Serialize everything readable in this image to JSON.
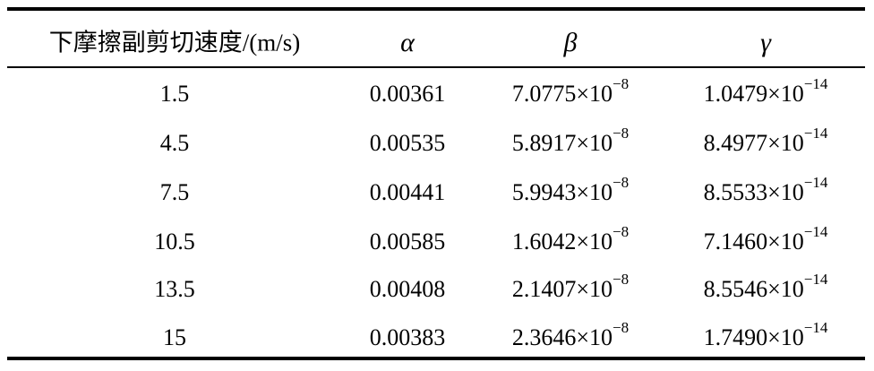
{
  "table": {
    "header": [
      "下摩擦副剪切速度/(m/s)",
      "α",
      "β",
      "γ"
    ],
    "rows": [
      [
        "1.5",
        "0.00361",
        {
          "base": "7.0775×10",
          "exp": "−8"
        },
        {
          "base": "1.0479×10",
          "exp": "−14"
        }
      ],
      [
        "4.5",
        "0.00535",
        {
          "base": "5.8917×10",
          "exp": "−8"
        },
        {
          "base": "8.4977×10",
          "exp": "−14"
        }
      ],
      [
        "7.5",
        "0.00441",
        {
          "base": "5.9943×10",
          "exp": "−8"
        },
        {
          "base": "8.5533×10",
          "exp": "−14"
        }
      ],
      [
        "10.5",
        "0.00585",
        {
          "base": "1.6042×10",
          "exp": "−8"
        },
        {
          "base": "7.1460×10",
          "exp": "−14"
        }
      ],
      [
        "13.5",
        "0.00408",
        {
          "base": "2.1407×10",
          "exp": "−8"
        },
        {
          "base": "8.5546×10",
          "exp": "−14"
        }
      ],
      [
        "15",
        "0.00383",
        {
          "base": "2.3646×10",
          "exp": "−8"
        },
        {
          "base": "1.7490×10",
          "exp": "−14"
        }
      ]
    ]
  }
}
